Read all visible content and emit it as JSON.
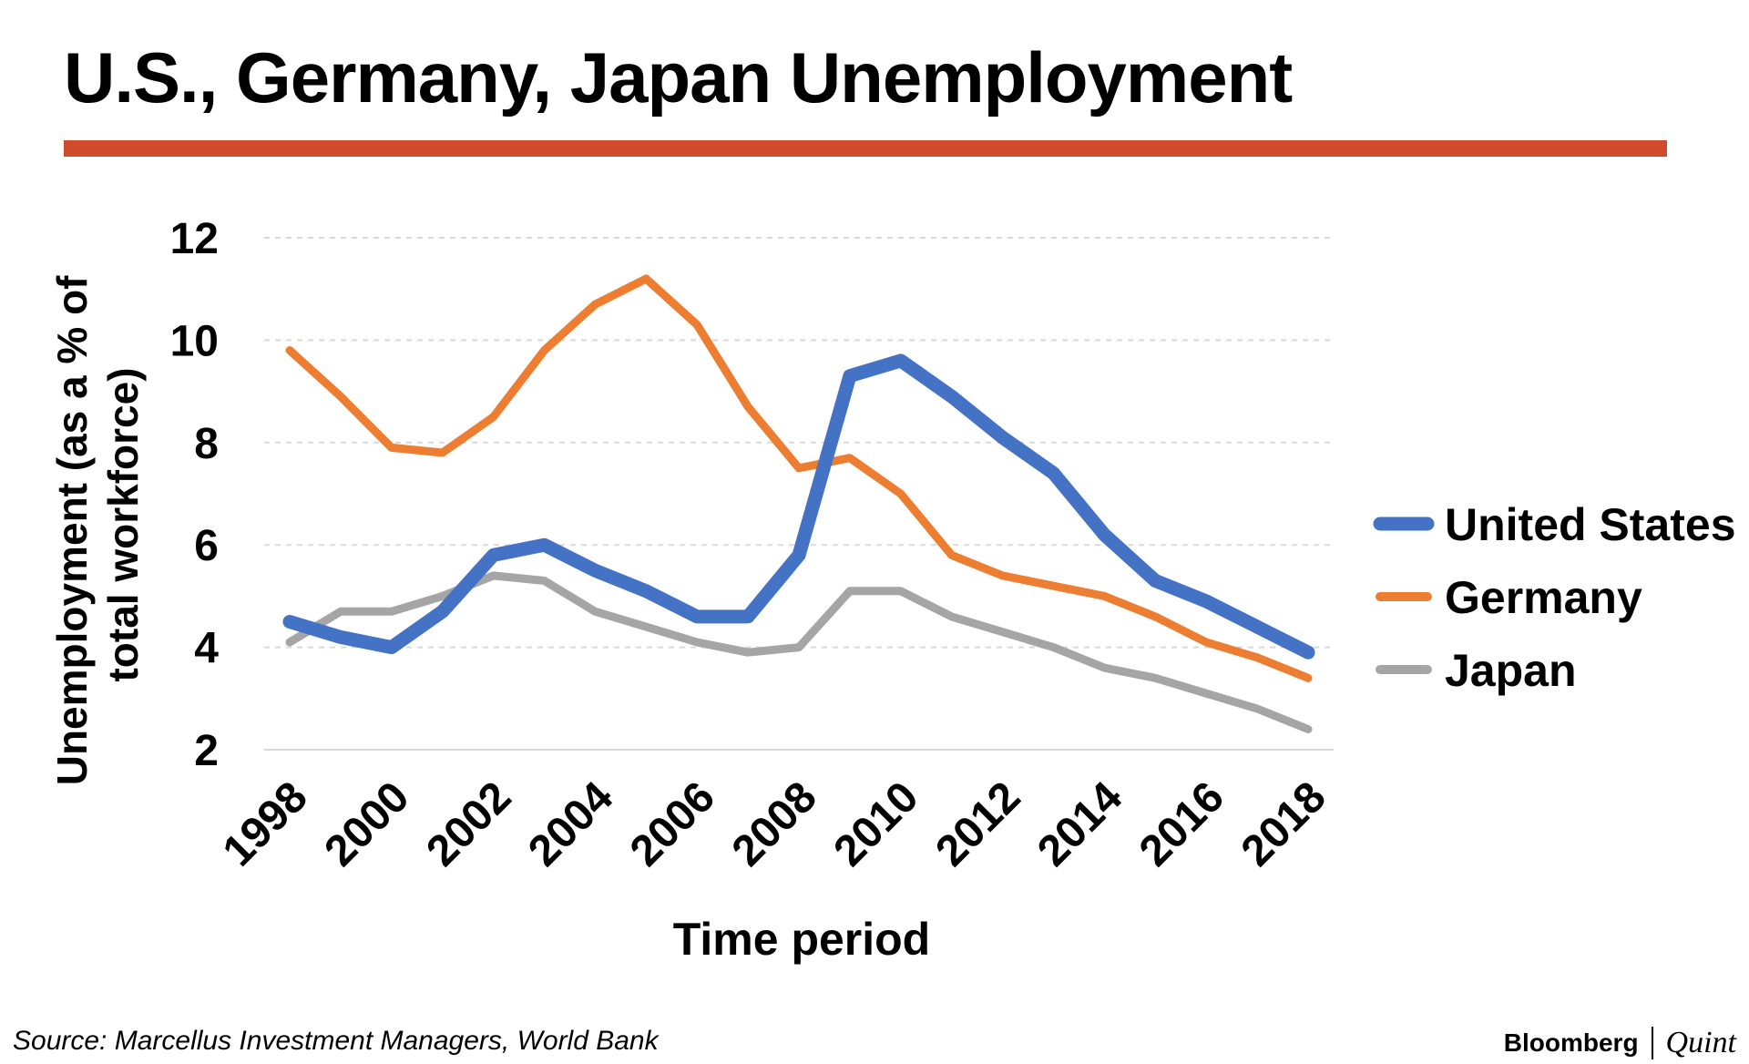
{
  "title": "U.S., Germany, Japan Unemployment",
  "source": "Source: Marcellus Investment Managers, World Bank",
  "brand": {
    "name": "Bloomberg",
    "suffix": "Quint"
  },
  "colors": {
    "rule": "#d14b2d",
    "united_states": "#4472c4",
    "germany": "#ed7d31",
    "japan": "#a5a5a5",
    "grid": "#d9d9d9"
  },
  "chart_data": {
    "type": "line",
    "title": "U.S., Germany, Japan Unemployment",
    "xlabel": "Time period",
    "ylabel": "Unemployment (as a % of total workforce)",
    "ylabel_lines": [
      "Unemployment (as a % of",
      "total workforce)"
    ],
    "x": [
      1998,
      1999,
      2000,
      2001,
      2002,
      2003,
      2004,
      2005,
      2006,
      2007,
      2008,
      2009,
      2010,
      2011,
      2012,
      2013,
      2014,
      2015,
      2016,
      2017,
      2018
    ],
    "xticks": [
      "1998",
      "2000",
      "2002",
      "2004",
      "2006",
      "2008",
      "2010",
      "2012",
      "2014",
      "2016",
      "2018"
    ],
    "yticks": [
      "2",
      "4",
      "6",
      "8",
      "10",
      "12"
    ],
    "ylim": [
      2,
      12
    ],
    "grid": true,
    "legend_position": "right",
    "series": [
      {
        "name": "United States",
        "color": "#4472c4",
        "values": [
          4.5,
          4.2,
          4.0,
          4.7,
          5.8,
          6.0,
          5.5,
          5.1,
          4.6,
          4.6,
          5.8,
          9.3,
          9.6,
          8.9,
          8.1,
          7.4,
          6.2,
          5.3,
          4.9,
          4.4,
          3.9
        ]
      },
      {
        "name": "Germany",
        "color": "#ed7d31",
        "values": [
          9.8,
          8.9,
          7.9,
          7.8,
          8.5,
          9.8,
          10.7,
          11.2,
          10.3,
          8.7,
          7.5,
          7.7,
          7.0,
          5.8,
          5.4,
          5.2,
          5.0,
          4.6,
          4.1,
          3.8,
          3.4
        ]
      },
      {
        "name": "Japan",
        "color": "#a5a5a5",
        "values": [
          4.1,
          4.7,
          4.7,
          5.0,
          5.4,
          5.3,
          4.7,
          4.4,
          4.1,
          3.9,
          4.0,
          5.1,
          5.1,
          4.6,
          4.3,
          4.0,
          3.6,
          3.4,
          3.1,
          2.8,
          2.4
        ]
      }
    ]
  }
}
